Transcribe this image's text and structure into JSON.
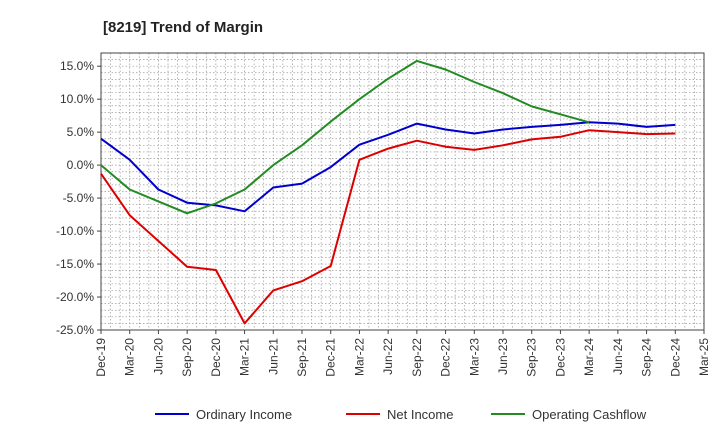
{
  "chart_data": {
    "type": "line",
    "title": "[8219]  Trend of Margin",
    "xlabel": "",
    "ylabel": "",
    "x": [
      "Dec-19",
      "Mar-20",
      "Jun-20",
      "Sep-20",
      "Dec-20",
      "Mar-21",
      "Jun-21",
      "Sep-21",
      "Dec-21",
      "Mar-22",
      "Jun-22",
      "Sep-22",
      "Dec-22",
      "Mar-23",
      "Jun-23",
      "Sep-23",
      "Dec-23",
      "Mar-24",
      "Jun-24",
      "Sep-24",
      "Dec-24"
    ],
    "x_ticks": [
      "Dec-19",
      "Mar-20",
      "Jun-20",
      "Sep-20",
      "Dec-20",
      "Mar-21",
      "Jun-21",
      "Sep-21",
      "Dec-21",
      "Mar-22",
      "Jun-22",
      "Sep-22",
      "Dec-22",
      "Mar-23",
      "Jun-23",
      "Sep-23",
      "Dec-23",
      "Mar-24",
      "Jun-24",
      "Sep-24",
      "Dec-24",
      "Mar-25"
    ],
    "y_ticks": [
      "15.0%",
      "10.0%",
      "5.0%",
      "0.0%",
      "-5.0%",
      "-10.0%",
      "-15.0%",
      "-20.0%",
      "-25.0%"
    ],
    "ylim": [
      -25,
      17
    ],
    "grid": true,
    "legend_position": "bottom",
    "series": [
      {
        "name": "Ordinary Income",
        "color": "#0000cc",
        "values": [
          4.0,
          0.8,
          -3.7,
          -5.7,
          -6.1,
          -7.0,
          -3.4,
          -2.8,
          -0.3,
          3.1,
          4.6,
          6.3,
          5.4,
          4.8,
          5.4,
          5.8,
          6.1,
          6.5,
          6.3,
          5.8,
          6.1
        ]
      },
      {
        "name": "Net Income",
        "color": "#dd0000",
        "values": [
          -1.3,
          -7.6,
          -11.5,
          -15.4,
          -15.9,
          -24.0,
          -19.0,
          -17.6,
          -15.3,
          0.8,
          2.5,
          3.7,
          2.8,
          2.3,
          3.0,
          3.9,
          4.3,
          5.3,
          5.0,
          4.7,
          4.8
        ]
      },
      {
        "name": "Operating Cashflow",
        "color": "#228b22",
        "values": [
          0.0,
          -3.7,
          -5.5,
          -7.3,
          -5.8,
          -3.7,
          0.0,
          3.0,
          6.6,
          10.0,
          13.1,
          15.8,
          14.5,
          12.6,
          10.9,
          8.9,
          7.7,
          6.5,
          null,
          null,
          null
        ]
      }
    ]
  }
}
